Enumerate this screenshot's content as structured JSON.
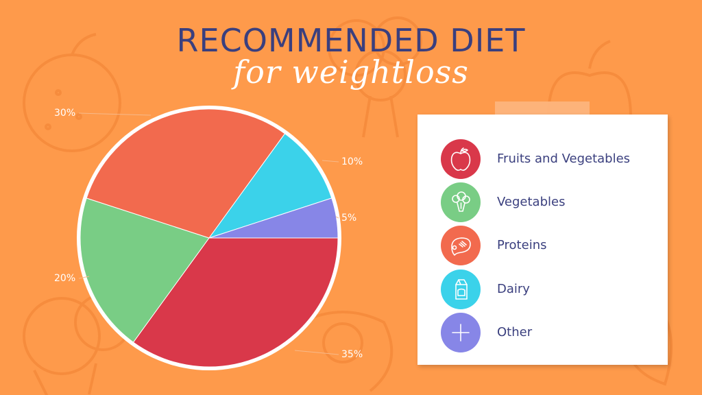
{
  "title": "RECOMMENDED DIET",
  "subtitle": "for weightloss",
  "colors": {
    "background": "#fe9a4b",
    "title": "#3a3f7e",
    "fruits_and_vegetables": "#d9384a",
    "vegetables": "#79cd85",
    "proteins": "#f26a4e",
    "dairy": "#3bd2ea",
    "other": "#8786e7"
  },
  "chart_data": {
    "type": "pie",
    "title": "RECOMMENDED DIET",
    "subtitle": "for weightloss",
    "slices": [
      {
        "label": "Fruits and Vegetables",
        "value": 35,
        "display": "35%",
        "color": "#d9384a"
      },
      {
        "label": "Vegetables",
        "value": 20,
        "display": "20%",
        "color": "#79cd85"
      },
      {
        "label": "Proteins",
        "value": 30,
        "display": "30%",
        "color": "#f26a4e"
      },
      {
        "label": "Dairy",
        "value": 10,
        "display": "10%",
        "color": "#3bd2ea"
      },
      {
        "label": "Other",
        "value": 5,
        "display": "5%",
        "color": "#8786e7"
      }
    ],
    "legend": "right"
  },
  "legend": {
    "items": [
      {
        "label": "Fruits and Vegetables",
        "icon": "apple-icon",
        "color": "#d9384a"
      },
      {
        "label": "Vegetables",
        "icon": "broccoli-icon",
        "color": "#79cd85"
      },
      {
        "label": "Proteins",
        "icon": "steak-icon",
        "color": "#f26a4e"
      },
      {
        "label": "Dairy",
        "icon": "milk-carton-icon",
        "color": "#3bd2ea"
      },
      {
        "label": "Other",
        "icon": "plus-icon",
        "color": "#8786e7"
      }
    ]
  }
}
